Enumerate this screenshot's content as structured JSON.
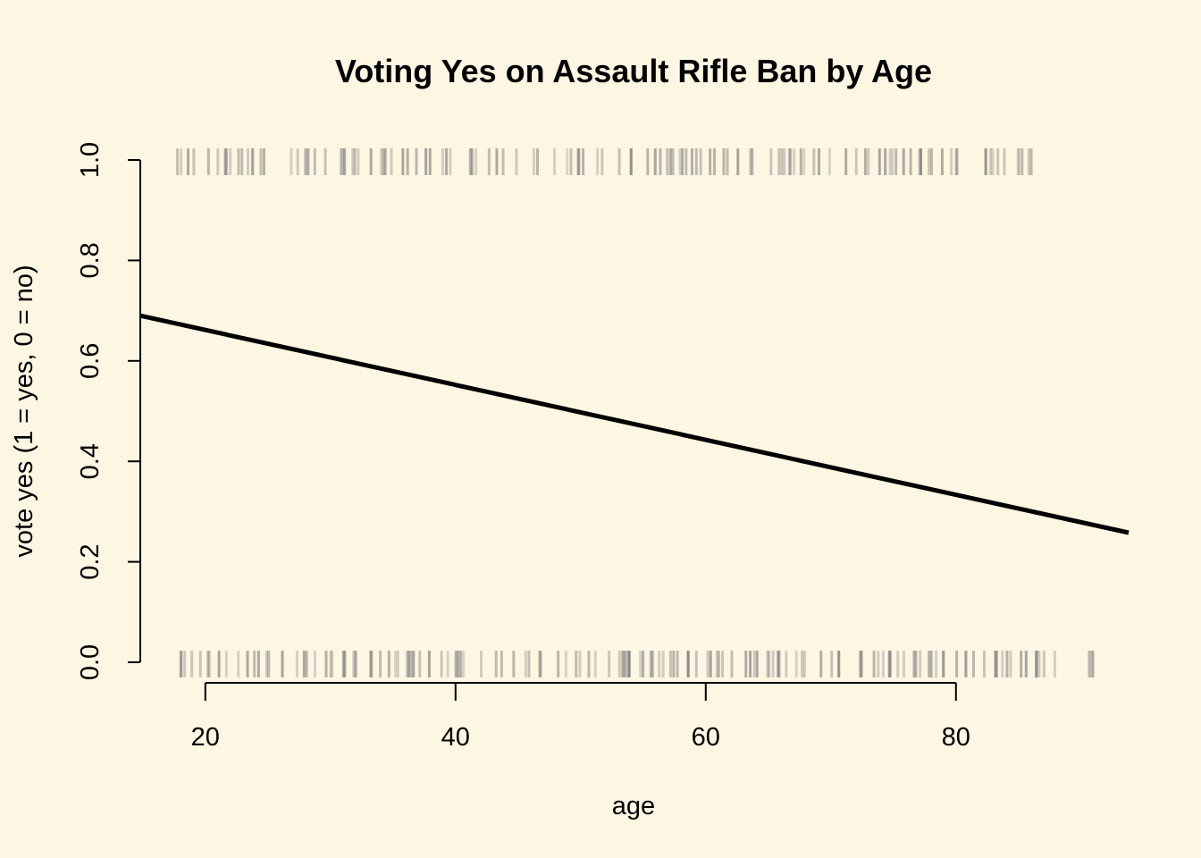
{
  "chart_data": {
    "type": "line",
    "title": "Voting Yes on Assault Rifle Ban by Age",
    "xlabel": "age",
    "ylabel": "vote yes (1 = yes, 0 = no)",
    "xlim": [
      14.8,
      93.8
    ],
    "ylim": [
      0,
      1
    ],
    "x_ticks": [
      20,
      40,
      60,
      80
    ],
    "y_ticks": [
      0,
      0.2,
      0.4,
      0.6,
      0.8,
      1
    ],
    "y_tick_labels": [
      "0.0",
      "0.2",
      "0.4",
      "0.6",
      "0.8",
      "1.0"
    ],
    "grid": false,
    "series": [
      {
        "x": [
          14.8,
          93.8
        ],
        "y": [
          0.69,
          0.258
        ]
      }
    ],
    "rug_yes_ages": [
      18,
      19,
      20,
      21,
      22,
      23,
      24,
      25,
      27,
      28,
      29,
      30,
      31,
      32,
      33,
      34,
      35,
      36,
      37,
      38,
      39,
      40,
      41,
      42,
      43,
      44,
      45,
      46,
      47,
      48,
      49,
      50,
      51,
      52,
      53,
      54,
      55,
      56,
      57,
      58,
      59,
      60,
      61,
      62,
      63,
      64,
      65,
      66,
      67,
      68,
      69,
      70,
      71,
      72,
      73,
      74,
      75,
      76,
      77,
      78,
      79,
      80,
      82,
      83,
      84,
      85,
      86
    ],
    "rug_no_ages": [
      18,
      19,
      20,
      21,
      22,
      23,
      24,
      25,
      26,
      27,
      28,
      29,
      30,
      31,
      32,
      33,
      34,
      35,
      36,
      37,
      38,
      39,
      40,
      41,
      42,
      43,
      44,
      45,
      46,
      47,
      48,
      49,
      50,
      51,
      52,
      53,
      54,
      55,
      56,
      57,
      58,
      59,
      60,
      61,
      62,
      63,
      64,
      65,
      66,
      67,
      68,
      69,
      70,
      71,
      72,
      73,
      74,
      75,
      76,
      77,
      78,
      79,
      80,
      81,
      82,
      83,
      84,
      85,
      86,
      87,
      88,
      91
    ],
    "colors": {
      "background": "#FDF6E3",
      "line": "#000000",
      "rug": "#6E6E6E"
    }
  }
}
